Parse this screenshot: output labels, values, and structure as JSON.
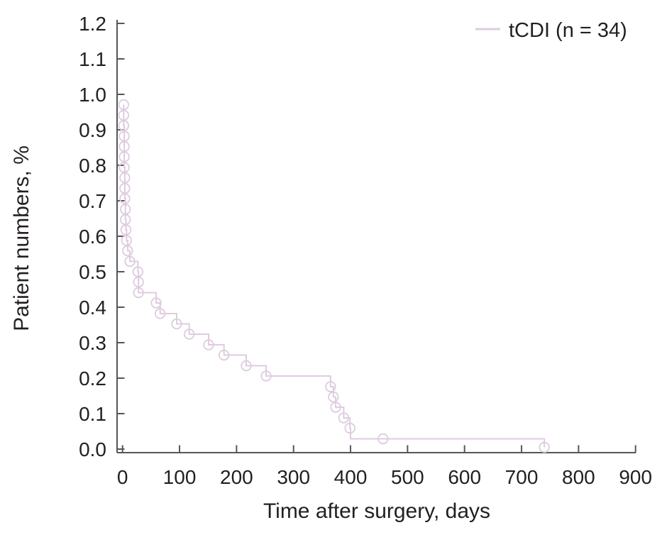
{
  "colors": {
    "background": "#ffffff",
    "axis": "#55565a",
    "text": "#231f20",
    "curve": "#DECCE0"
  },
  "chart_data": {
    "type": "line",
    "variant": "kaplan_meier_step_function",
    "title": "",
    "xlabel": "Time after surgery, days",
    "ylabel": "Patient numbers, %",
    "xlim": [
      0,
      900
    ],
    "ylim": [
      0.0,
      1.2
    ],
    "xticks": [
      0,
      100,
      200,
      300,
      400,
      500,
      600,
      700,
      800,
      900
    ],
    "yticks": [
      0.0,
      0.1,
      0.2,
      0.3,
      0.4,
      0.5,
      0.6,
      0.7,
      0.8,
      0.9,
      1.0,
      1.1,
      1.2
    ],
    "grid": false,
    "legend_position": "top-right",
    "legend": [
      {
        "label": "tCDI (n = 34)",
        "color": "#DECCE0",
        "swatch": "line"
      }
    ],
    "series": [
      {
        "name": "tCDI (n = 34)",
        "color": "#DECCE0",
        "marker": "open-circle",
        "n": 34,
        "events_format": "[time_days, survival_fraction, has_marker]",
        "events": [
          [
            2,
            0.971,
            1
          ],
          [
            2,
            0.941,
            1
          ],
          [
            2,
            0.912,
            1
          ],
          [
            3,
            0.882,
            1
          ],
          [
            3,
            0.853,
            1
          ],
          [
            3,
            0.824,
            1
          ],
          [
            3,
            0.794,
            1
          ],
          [
            4,
            0.765,
            1
          ],
          [
            4,
            0.735,
            1
          ],
          [
            4,
            0.706,
            1
          ],
          [
            5,
            0.676,
            1
          ],
          [
            5,
            0.647,
            1
          ],
          [
            6,
            0.618,
            1
          ],
          [
            7,
            0.588,
            1
          ],
          [
            9,
            0.559,
            1
          ],
          [
            13,
            0.529,
            1
          ],
          [
            27,
            0.5,
            1
          ],
          [
            28,
            0.471,
            1
          ],
          [
            28,
            0.441,
            1
          ],
          [
            59,
            0.412,
            1
          ],
          [
            66,
            0.382,
            1
          ],
          [
            95,
            0.353,
            1
          ],
          [
            117,
            0.324,
            1
          ],
          [
            151,
            0.294,
            1
          ],
          [
            178,
            0.265,
            1
          ],
          [
            217,
            0.235,
            1
          ],
          [
            252,
            0.206,
            1
          ],
          [
            365,
            0.176,
            1
          ],
          [
            370,
            0.147,
            1
          ],
          [
            374,
            0.118,
            1
          ],
          [
            388,
            0.088,
            1
          ],
          [
            399,
            0.059,
            1
          ],
          [
            400,
            0.029,
            0
          ],
          [
            740,
            0.005,
            1
          ]
        ],
        "censored_format": "[time_days, survival_fraction]",
        "censored": [
          [
            457,
            0.029
          ]
        ]
      }
    ]
  }
}
